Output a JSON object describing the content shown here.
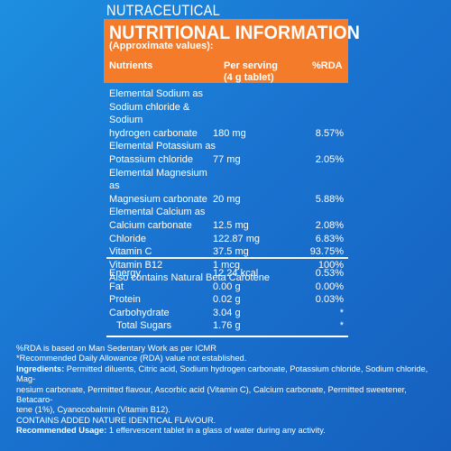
{
  "brand": "NUTRACEUTICAL",
  "header": {
    "title": "NUTRITIONAL INFORMATION",
    "subtitle": "(Approximate values):",
    "col_nutrients": "Nutrients",
    "col_serving_1": "Per serving",
    "col_serving_2": "(4 g tablet)",
    "col_rda": "%RDA"
  },
  "minerals": [
    {
      "name_lines": [
        "Elemental Sodium as",
        "Sodium chloride & Sodium",
        "hydrogen carbonate"
      ],
      "value": "180 mg",
      "rda": "8.57%"
    },
    {
      "name_lines": [
        "Elemental Potassium as",
        "Potassium chloride"
      ],
      "value": "77 mg",
      "rda": "2.05%"
    },
    {
      "name_lines": [
        "Elemental Magnesium as",
        "Magnesium carbonate"
      ],
      "value": "20 mg",
      "rda": "5.88%"
    },
    {
      "name_lines": [
        "Elemental Calcium as",
        "Calcium carbonate"
      ],
      "value": "12.5 mg",
      "rda": "2.08%"
    },
    {
      "name_lines": [
        "Chloride"
      ],
      "value": "122.87 mg",
      "rda": "6.83%"
    },
    {
      "name_lines": [
        "Vitamin C"
      ],
      "value": "37.5 mg",
      "rda": "93.75%"
    },
    {
      "name_lines": [
        "Vitamin B12"
      ],
      "value": "1 mcg",
      "rda": "100%"
    }
  ],
  "also_contains": "Also contains Natural Beta Carotene",
  "energy_rows": [
    {
      "name": "Energy",
      "value": "12.24 kcal",
      "rda": "0.53%",
      "indent": false
    },
    {
      "name": "Fat",
      "value": "0.00 g",
      "rda": "0.00%",
      "indent": false
    },
    {
      "name": "Protein",
      "value": "0.02 g",
      "rda": "0.03%",
      "indent": false
    },
    {
      "name": "Carbohydrate",
      "value": "3.04 g",
      "rda": "*",
      "indent": false
    },
    {
      "name": "Total Sugars",
      "value": "1.76 g",
      "rda": "*",
      "indent": true
    }
  ],
  "notes": {
    "rda_basis": "%RDA is based on Man Sedentary Work as per ICMR",
    "rda_not_established": "*Recommended Daily Allowance (RDA) value not established.",
    "ingredients_label": "Ingredients:",
    "ingredients_text": " Permitted diluents, Citric acid, Sodium hydrogen carbonate, Potassium chloride, Sodium chloride, Mag-",
    "ingredients_text_2": "nesium carbonate, Permitted flavour, Ascorbic acid (Vitamin C), Calcium carbonate, Permitted sweetener, Betacaro-",
    "ingredients_text_3": "tene (1%), Cyanocobalmin (Vitamin B12).",
    "added_flavour": "CONTAINS ADDED NATURE IDENTICAL FLAVOUR.",
    "usage_label": "Recommended Usage:",
    "usage_text": " 1 effervescent tablet in a glass of water during any activity."
  },
  "colors": {
    "background": "#1a73d0",
    "header_orange": "#f47b2a",
    "text": "#ffffff"
  }
}
